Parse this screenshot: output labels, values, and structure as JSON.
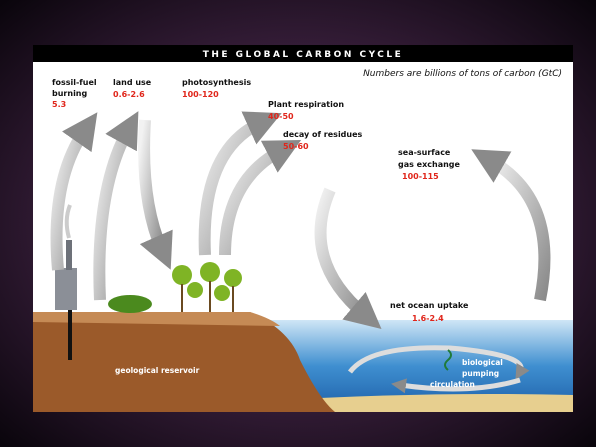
{
  "header": {
    "title": "THE GLOBAL CARBON CYCLE",
    "subtitle": "Numbers are billions of tons of carbon (GtC)"
  },
  "fluxes": [
    {
      "label": [
        "fossil-fuel",
        "burning"
      ],
      "value": "5.3"
    },
    {
      "label": [
        "land use"
      ],
      "value": "0.6-2.6"
    },
    {
      "label": [
        "photosynthesis"
      ],
      "value": "100-120"
    },
    {
      "label": [
        "Plant respiration"
      ],
      "value": "40-50"
    },
    {
      "label": [
        "decay of residues"
      ],
      "value": "50-60"
    },
    {
      "label": [
        "sea-surface",
        "gas exchange"
      ],
      "value": "100-115"
    },
    {
      "label": [
        "net ocean uptake"
      ],
      "value": "1.6-2.4"
    }
  ],
  "regions": {
    "reservoir": "geological reservoir",
    "pumping": [
      "biological",
      "pumping"
    ],
    "circulation": "circulation"
  }
}
